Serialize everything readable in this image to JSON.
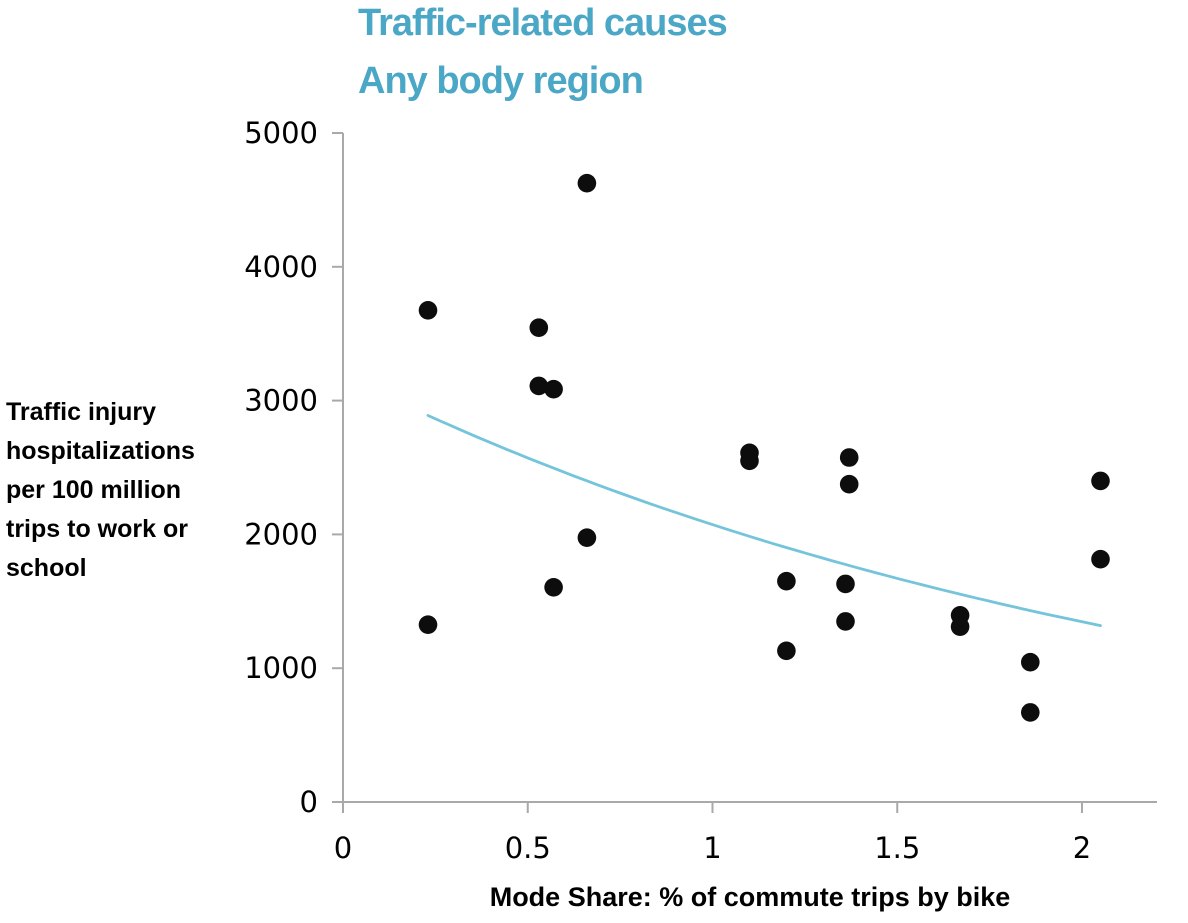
{
  "page": {
    "background": "#FFFFFF"
  },
  "chart_data": {
    "type": "scatter",
    "title_lines": [
      "Traffic-related causes",
      "Any body region"
    ],
    "xlabel": "Mode Share: % of commute trips by bike",
    "ylabel_lines": [
      "Traffic injury",
      "hospitalizations",
      "per 100 million",
      "trips to work or",
      "school"
    ],
    "xlim": [
      0,
      2.2
    ],
    "ylim": [
      0,
      5000
    ],
    "x_ticks": [
      0,
      0.5,
      1,
      1.5,
      2
    ],
    "x_tick_labels": [
      "0",
      "0.5",
      "1",
      "1.5",
      "2"
    ],
    "y_ticks": [
      0,
      1000,
      2000,
      3000,
      4000,
      5000
    ],
    "y_tick_labels": [
      "0",
      "1000",
      "2000",
      "3000",
      "4000",
      "5000"
    ],
    "grid": false,
    "legend": null,
    "points": [
      [
        0.23,
        3675
      ],
      [
        0.23,
        1325
      ],
      [
        0.53,
        3545
      ],
      [
        0.53,
        3110
      ],
      [
        0.57,
        3085
      ],
      [
        0.57,
        1605
      ],
      [
        0.66,
        4625
      ],
      [
        0.66,
        1975
      ],
      [
        1.1,
        2610
      ],
      [
        1.1,
        2550
      ],
      [
        1.2,
        1650
      ],
      [
        1.2,
        1130
      ],
      [
        1.37,
        2575
      ],
      [
        1.37,
        2375
      ],
      [
        1.36,
        1630
      ],
      [
        1.36,
        1350
      ],
      [
        1.67,
        1395
      ],
      [
        1.67,
        1310
      ],
      [
        1.86,
        1045
      ],
      [
        1.86,
        670
      ],
      [
        2.05,
        2400
      ],
      [
        2.05,
        1815
      ]
    ],
    "trendline": {
      "type": "exponential",
      "formula": "y = 3190 * exp(-0.431 * x)",
      "a": 3190,
      "k": 0.431,
      "x_start": 0.23,
      "x_end": 2.05
    },
    "colors": {
      "title": "#4BA7C6",
      "trend_line": "#74C4DB",
      "point": "#0D0D0D",
      "axis": "#A9A9A9",
      "tick_text": "#000000",
      "label_text": "#000000"
    }
  }
}
